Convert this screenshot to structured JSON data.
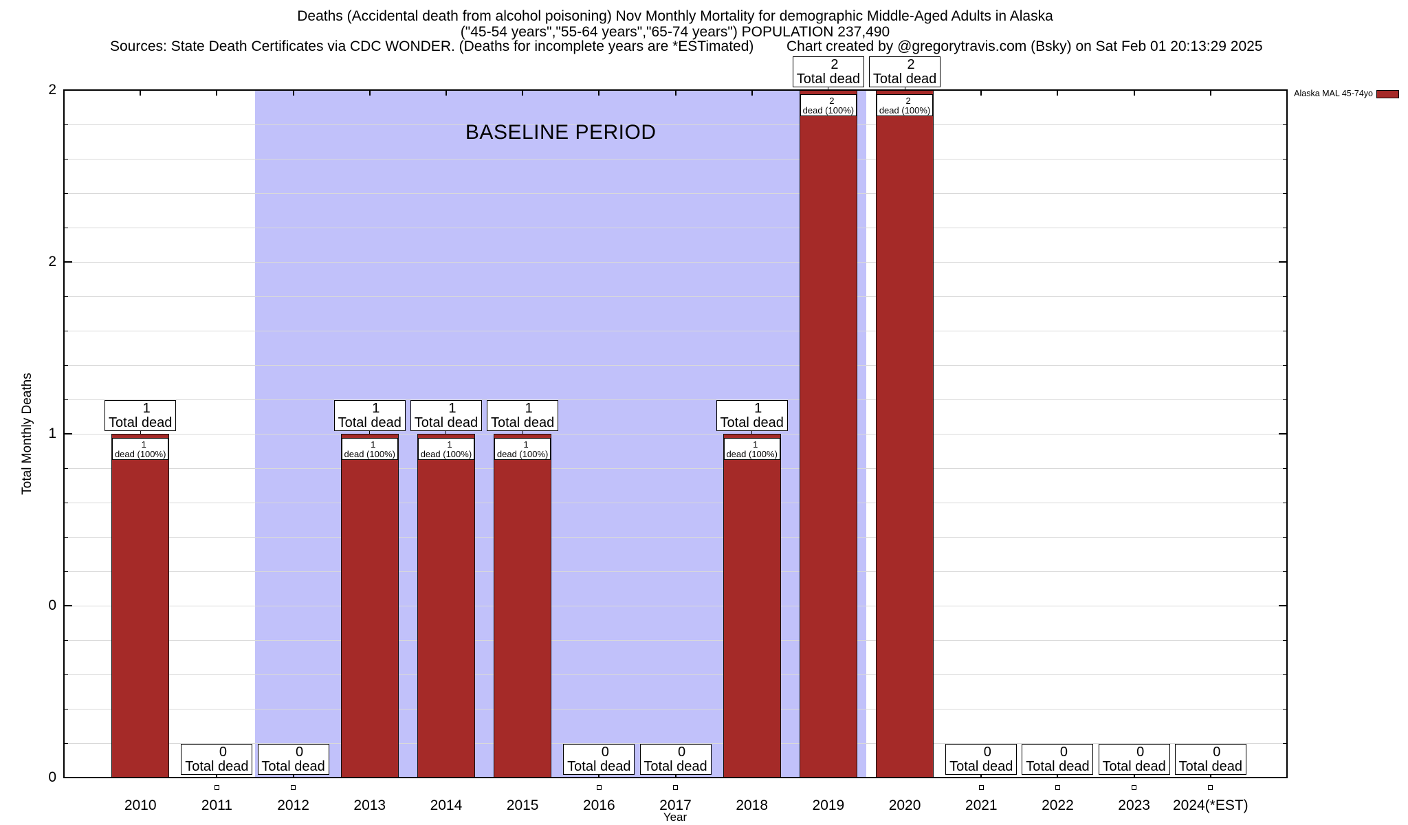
{
  "header": {
    "title_line1": "Deaths (Accidental death from alcohol poisoning) Nov Monthly Mortality for demographic Middle-Aged Adults in Alaska",
    "title_line2": "(\"45-54 years\",\"55-64 years\",\"65-74 years\") POPULATION 237,490",
    "sources": "Sources: State Death Certificates via CDC WONDER. (Deaths for incomplete years are *ESTimated)",
    "credit": "Chart created by @gregorytravis.com (Bsky) on Sat Feb 01 20:13:29 2025"
  },
  "legend": {
    "label": "Alaska MAL 45-74yo",
    "swatch_color": "#a52a28"
  },
  "baseline_band": {
    "label": "BASELINE PERIOD",
    "from_year": 2011.5,
    "to_year": 2019.5,
    "color": "#c1c1fa"
  },
  "axes": {
    "xlabel": "Year",
    "ylabel": "Total Monthly Deaths",
    "xlim": [
      2009,
      2025
    ],
    "ylim": [
      0,
      2
    ],
    "ytick_values": [
      0,
      0.5,
      1,
      1.5,
      2
    ],
    "ytick_labels": [
      "0",
      "0",
      "1",
      "2",
      "2"
    ],
    "minor_grid_step": 0.1,
    "grid": "horizontal"
  },
  "annotations": {
    "total_label": "Total dead",
    "pct_label": "dead (100%)"
  },
  "chart_data": {
    "type": "bar",
    "title": "Deaths (Accidental death from alcohol poisoning) Nov Monthly Mortality for demographic Middle-Aged Adults in Alaska",
    "categories": [
      "2010",
      "2011",
      "2012",
      "2013",
      "2014",
      "2015",
      "2016",
      "2017",
      "2018",
      "2019",
      "2020",
      "2021",
      "2022",
      "2023",
      "2024(*EST)"
    ],
    "values": [
      1,
      0,
      0,
      1,
      1,
      1,
      0,
      0,
      1,
      2,
      2,
      0,
      0,
      0,
      0
    ],
    "series": [
      {
        "name": "Alaska MAL 45-74yo",
        "values": [
          1,
          0,
          0,
          1,
          1,
          1,
          0,
          0,
          1,
          2,
          2,
          0,
          0,
          0,
          0
        ]
      }
    ],
    "bar_color": "#a52a28",
    "bar_border_color": "#101010",
    "xlabel": "Year",
    "ylabel": "Total Monthly Deaths",
    "xlim": [
      2009,
      2025
    ],
    "ylim": [
      0,
      2
    ],
    "legend_position": "top-right-outside"
  }
}
